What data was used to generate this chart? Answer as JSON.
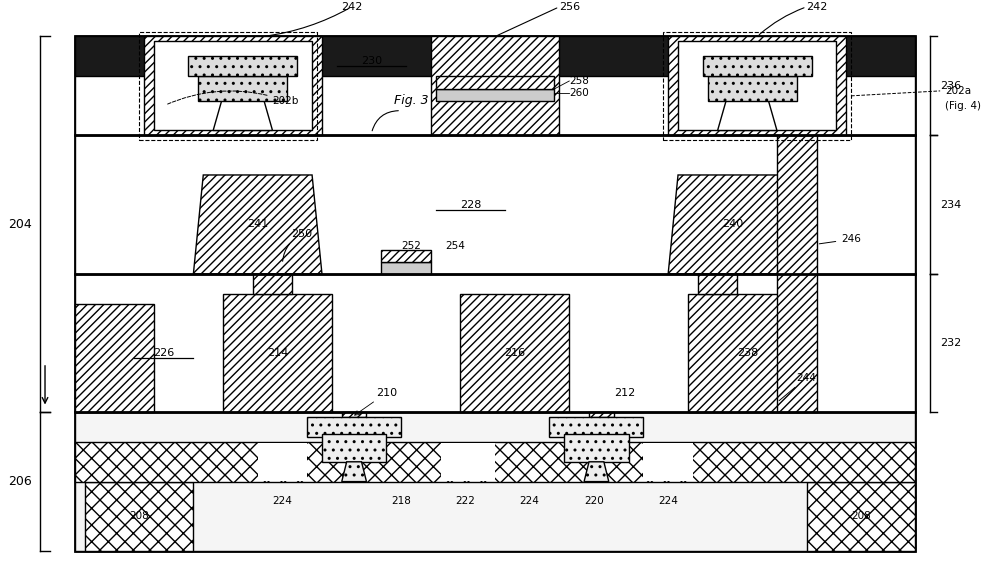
{
  "fig_width": 10.0,
  "fig_height": 5.72,
  "bg_color": "#ffffff",
  "line_color": "#000000",
  "labels": {
    "242_top_left": "242",
    "242_top_right": "242",
    "256": "256",
    "230": "230",
    "258": "258",
    "260": "260",
    "202b": "202b",
    "202a": "202a",
    "fig3": "Fig. 3",
    "fig4": "(Fig. 4)",
    "236": "236",
    "234": "234",
    "241": "241",
    "240": "240",
    "252": "252",
    "254": "254",
    "228": "228",
    "250": "250",
    "246": "246",
    "204": "204",
    "232": "232",
    "214": "214",
    "216": "216",
    "238": "238",
    "226": "226",
    "210": "210",
    "212": "212",
    "244": "244",
    "206": "206",
    "208_left": "208",
    "208_right": "208",
    "218": "218",
    "222": "222",
    "224_l": "224",
    "224_m": "224",
    "224_r": "224",
    "220": "220"
  }
}
